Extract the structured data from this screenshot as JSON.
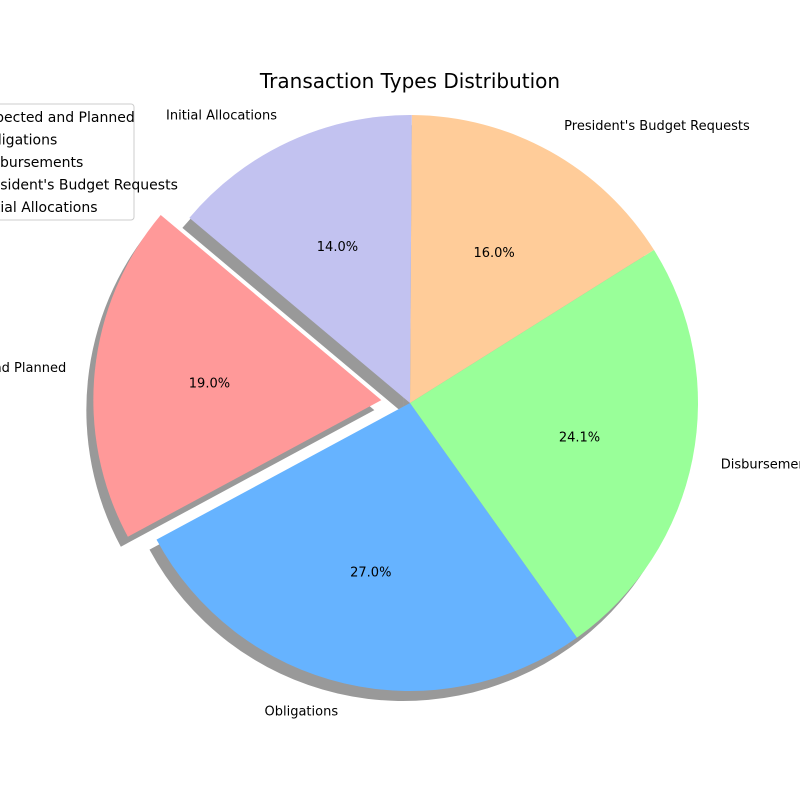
{
  "chart_data": {
    "type": "pie",
    "title": "Transaction Types Distribution",
    "start_angle_deg": 140,
    "counterclockwise": true,
    "shadow": true,
    "legend_position": "upper-left",
    "slices": [
      {
        "label": "Expected and Planned",
        "value": 19.0,
        "pct_label": "19.0%",
        "color": "#ff9999",
        "explode": 0.1
      },
      {
        "label": "Obligations",
        "value": 27.0,
        "pct_label": "27.0%",
        "color": "#66b3ff",
        "explode": 0
      },
      {
        "label": "Disbursements",
        "value": 24.1,
        "pct_label": "24.1%",
        "color": "#99ff99",
        "explode": 0
      },
      {
        "label": "President's Budget Requests",
        "value": 16.0,
        "pct_label": "16.0%",
        "color": "#ffcc99",
        "explode": 0
      },
      {
        "label": "Initial Allocations",
        "value": 14.0,
        "pct_label": "14.0%",
        "color": "#c2c2f0",
        "explode": 0
      }
    ]
  }
}
